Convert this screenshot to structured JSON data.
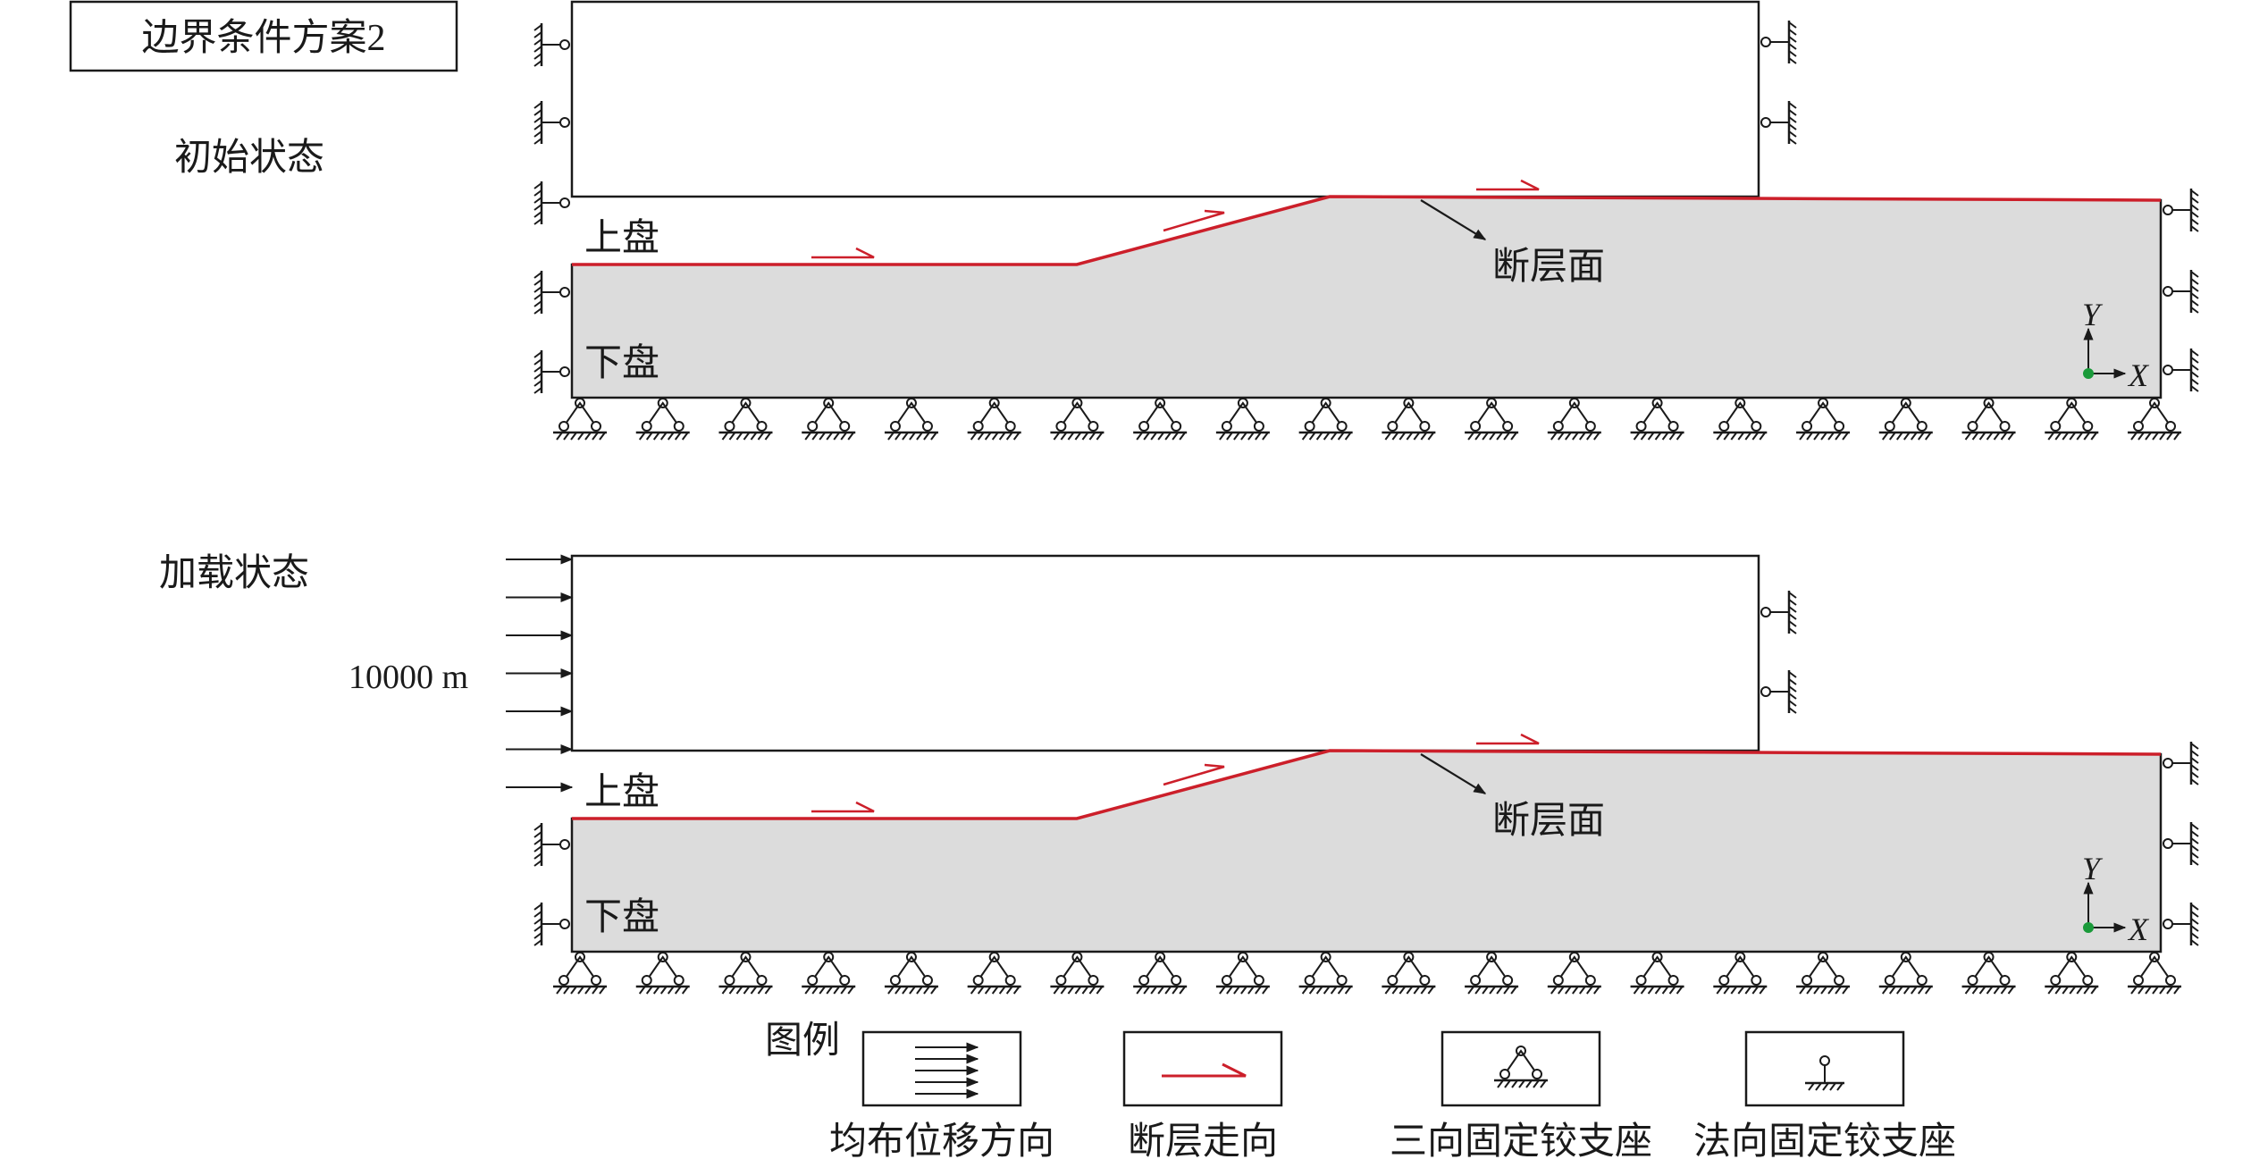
{
  "title_box": "边界条件方案2",
  "panels": [
    {
      "state_label": "初始状态",
      "hanging_wall_label": "上盘",
      "footwall_label": "下盘",
      "fault_plane_label": "断层面",
      "axis_y": "Y",
      "axis_x": "X"
    },
    {
      "state_label": "加载状态",
      "hanging_wall_label": "上盘",
      "footwall_label": "下盘",
      "fault_plane_label": "断层面",
      "displacement_label": "10000 m",
      "axis_y": "Y",
      "axis_x": "X"
    }
  ],
  "legend": {
    "title": "图例",
    "items": [
      {
        "symbol": "uniform-displacement-arrows",
        "label": "均布位移方向"
      },
      {
        "symbol": "fault-strike-arrow",
        "label": "断层走向"
      },
      {
        "symbol": "three-way-fixed-hinge-support",
        "label": "三向固定铰支座"
      },
      {
        "symbol": "normal-fixed-hinge-support",
        "label": "法向固定铰支座"
      }
    ]
  },
  "colors": {
    "fault_line": "#cc1f2a",
    "footwall_fill": "#dcdcdc",
    "origin_dot": "#1a9a3a",
    "line": "#1a1a1a"
  }
}
